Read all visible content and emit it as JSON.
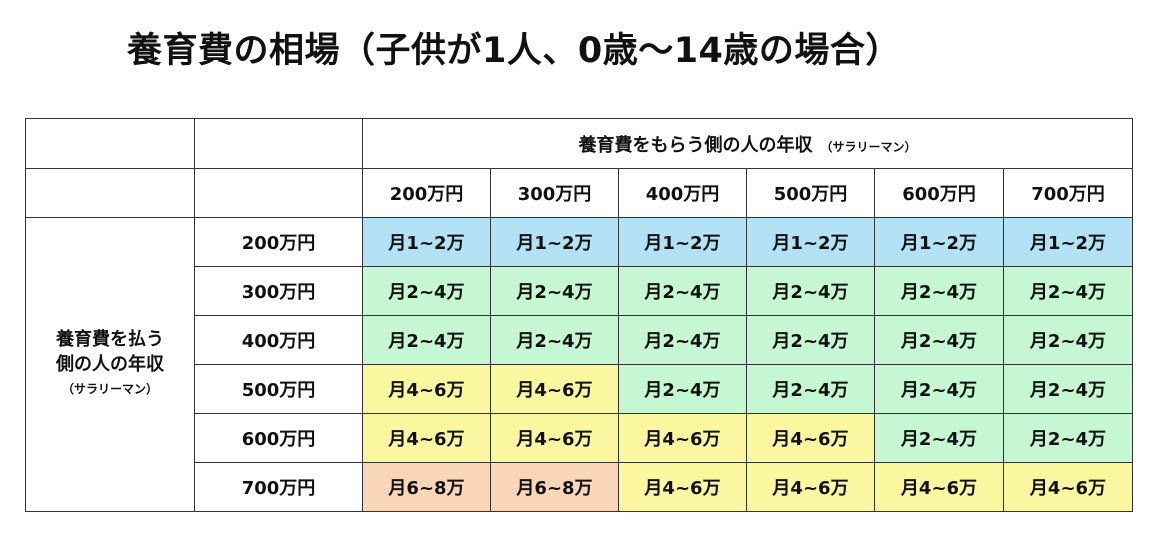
{
  "title": "養育費の相場（子供が1人、0歳～14歳の場合）",
  "colors": {
    "月1~2万": "#b3e2f7",
    "月2~4万": "#c4f7d2",
    "月4~6万": "#fbf7a0",
    "月6~8万": "#fad6b9"
  },
  "chart_data": {
    "type": "table",
    "column_header": "養育費をもらう側の人の年収",
    "column_header_note": "（サラリーマン）",
    "row_header_lines": [
      "養育費を払う",
      "側の人の年収"
    ],
    "row_header_note": "（サラリーマン）",
    "columns": [
      "200万円",
      "300万円",
      "400万円",
      "500万円",
      "600万円",
      "700万円"
    ],
    "rows": [
      "200万円",
      "300万円",
      "400万円",
      "500万円",
      "600万円",
      "700万円"
    ],
    "cells": [
      [
        "月1~2万",
        "月1~2万",
        "月1~2万",
        "月1~2万",
        "月1~2万",
        "月1~2万"
      ],
      [
        "月2~4万",
        "月2~4万",
        "月2~4万",
        "月2~4万",
        "月2~4万",
        "月2~4万"
      ],
      [
        "月2~4万",
        "月2~4万",
        "月2~4万",
        "月2~4万",
        "月2~4万",
        "月2~4万"
      ],
      [
        "月4~6万",
        "月4~6万",
        "月2~4万",
        "月2~4万",
        "月2~4万",
        "月2~4万"
      ],
      [
        "月4~6万",
        "月4~6万",
        "月4~6万",
        "月4~6万",
        "月2~4万",
        "月2~4万"
      ],
      [
        "月6~8万",
        "月6~8万",
        "月4~6万",
        "月4~6万",
        "月4~6万",
        "月4~6万"
      ]
    ]
  }
}
